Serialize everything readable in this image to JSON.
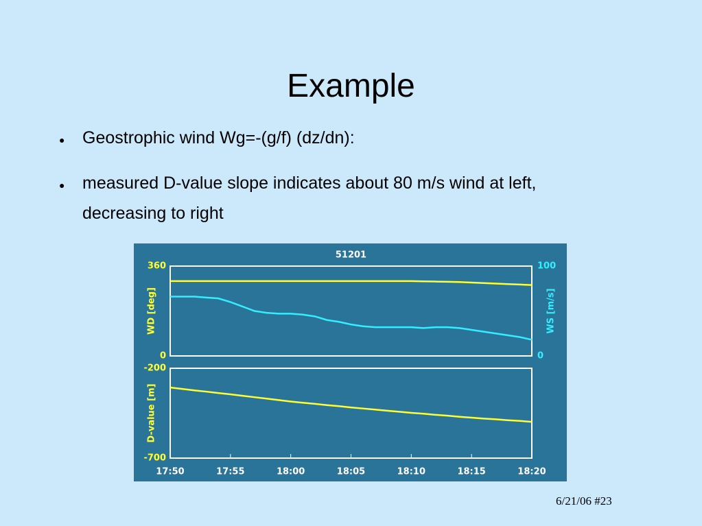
{
  "slide": {
    "title": "Example",
    "bullets": [
      "Geostrophic wind Wg=-(g/f) (dz/dn):",
      "measured D-value slope indicates about 80 m/s wind at left, decreasing to right"
    ],
    "footer": "6/21/06 #23"
  },
  "chart_data": [
    {
      "type": "line",
      "title": "51201",
      "y_label": "WD [deg]",
      "y2_label": "WS [m/s]",
      "x": [
        "17:50",
        "17:51",
        "17:52",
        "17:53",
        "17:54",
        "17:55",
        "17:56",
        "17:57",
        "17:58",
        "17:59",
        "18:00",
        "18:01",
        "18:02",
        "18:03",
        "18:04",
        "18:05",
        "18:06",
        "18:07",
        "18:08",
        "18:09",
        "18:10",
        "18:11",
        "18:12",
        "18:13",
        "18:14",
        "18:15",
        "18:16",
        "18:17",
        "18:18",
        "18:19",
        "18:20"
      ],
      "ylim": [
        0,
        360
      ],
      "yticks": [
        0,
        360
      ],
      "y2lim": [
        0,
        100
      ],
      "y2ticks": [
        0,
        100
      ],
      "grid": false,
      "series": [
        {
          "name": "WD",
          "color": "#ffff33",
          "values": [
            300,
            300,
            300,
            300,
            300,
            300,
            300,
            300,
            300,
            300,
            300,
            300,
            300,
            300,
            300,
            300,
            300,
            300,
            300,
            300,
            300,
            299,
            298,
            297,
            296,
            294,
            292,
            290,
            288,
            286,
            284
          ]
        },
        {
          "name": "WS",
          "color": "#33eeff",
          "axis": "y2",
          "values": [
            66,
            66,
            66,
            65,
            64,
            60,
            55,
            50,
            48,
            47,
            47,
            46,
            44,
            40,
            38,
            35,
            33,
            32,
            32,
            32,
            32,
            31,
            32,
            32,
            31,
            29,
            27,
            25,
            23,
            21,
            18
          ]
        }
      ]
    },
    {
      "type": "line",
      "y_label": "D-value [m]",
      "x": [
        "17:50",
        "17:51",
        "17:52",
        "17:53",
        "17:54",
        "17:55",
        "17:56",
        "17:57",
        "17:58",
        "17:59",
        "18:00",
        "18:01",
        "18:02",
        "18:03",
        "18:04",
        "18:05",
        "18:06",
        "18:07",
        "18:08",
        "18:09",
        "18:10",
        "18:11",
        "18:12",
        "18:13",
        "18:14",
        "18:15",
        "18:16",
        "18:17",
        "18:18",
        "18:19",
        "18:20"
      ],
      "xticks": [
        "17:50",
        "17:55",
        "18:00",
        "18:05",
        "18:10",
        "18:15",
        "18:20"
      ],
      "ylim": [
        -700,
        -200
      ],
      "yticks": [
        -700,
        -200
      ],
      "grid": false,
      "series": [
        {
          "name": "D-value",
          "color": "#ffff33",
          "values": [
            -307,
            -315,
            -323,
            -330,
            -338,
            -345,
            -353,
            -361,
            -369,
            -377,
            -385,
            -392,
            -398,
            -405,
            -411,
            -418,
            -424,
            -430,
            -436,
            -442,
            -448,
            -453,
            -459,
            -464,
            -470,
            -475,
            -480,
            -484,
            -489,
            -493,
            -498
          ]
        }
      ]
    }
  ]
}
